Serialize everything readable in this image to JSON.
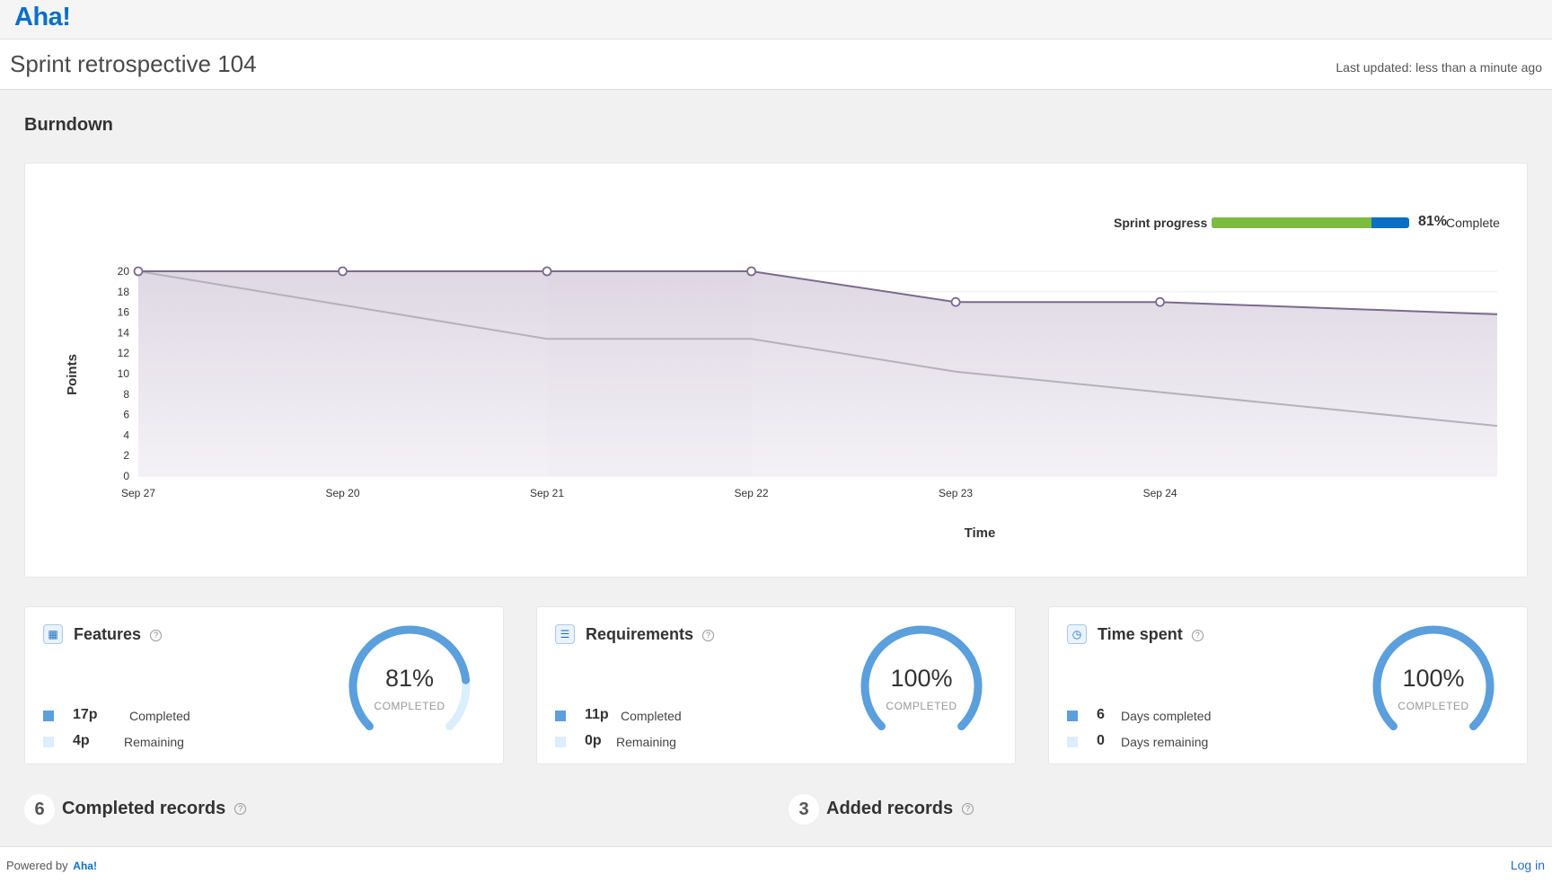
{
  "app": {
    "logo": "Aha!"
  },
  "header": {
    "title": "Sprint retrospective 104",
    "last_updated": "Last updated: less than a minute ago"
  },
  "burndown": {
    "section_title": "Burndown",
    "progress": {
      "label": "Sprint progress",
      "percent": 81,
      "percent_text": "81%",
      "suffix": "Complete",
      "complete_color": "#7cbb3e",
      "remaining_color": "#0b6fc6"
    }
  },
  "chart_data": {
    "type": "area",
    "xlabel": "Time",
    "ylabel": "Points",
    "categories": [
      "Sep 27",
      "Sep 20",
      "Sep 21",
      "Sep 22",
      "Sep 23",
      "Sep 24"
    ],
    "x_end": 6.65,
    "ylim": [
      0,
      20
    ],
    "yticks": [
      0,
      2,
      4,
      6,
      8,
      10,
      12,
      14,
      16,
      18,
      20
    ],
    "grid": true,
    "highlight_range": [
      2,
      3
    ],
    "series": [
      {
        "role": "remaining",
        "color": "#7a6a8f",
        "points": [
          [
            0,
            20
          ],
          [
            1,
            20
          ],
          [
            2,
            20
          ],
          [
            3,
            20
          ],
          [
            4,
            17
          ],
          [
            5,
            17
          ],
          [
            6.65,
            15.8
          ]
        ]
      },
      {
        "role": "ideal",
        "color": "#b5b1ba",
        "points": [
          [
            0,
            20
          ],
          [
            2,
            13.4
          ],
          [
            3,
            13.4
          ],
          [
            4,
            10.2
          ],
          [
            6.65,
            4.9
          ]
        ]
      }
    ]
  },
  "cards": [
    {
      "icon": "grid-icon",
      "title": "Features",
      "percent": 81,
      "percent_text": "81%",
      "gauge_label": "COMPLETED",
      "completed_value": "17p",
      "completed_label": "Completed",
      "remaining_value": "4p",
      "remaining_label": "Remaining"
    },
    {
      "icon": "list-icon",
      "title": "Requirements",
      "percent": 100,
      "percent_text": "100%",
      "gauge_label": "COMPLETED",
      "completed_value": "11p",
      "completed_label": "Completed",
      "remaining_value": "0p",
      "remaining_label": "Remaining"
    },
    {
      "icon": "clock-icon",
      "title": "Time spent",
      "percent": 100,
      "percent_text": "100%",
      "gauge_label": "COMPLETED",
      "completed_value": "6",
      "completed_label": "Days completed",
      "remaining_value": "0",
      "remaining_label": "Days remaining"
    }
  ],
  "colors": {
    "completed": "#5b9fdc",
    "remaining": "#dbeefb"
  },
  "records": {
    "completed": {
      "count": "6",
      "title": "Completed records"
    },
    "added": {
      "count": "3",
      "title": "Added records"
    }
  },
  "footer": {
    "powered_by": "Powered by",
    "powered_logo": "Aha!",
    "login": "Log in"
  }
}
